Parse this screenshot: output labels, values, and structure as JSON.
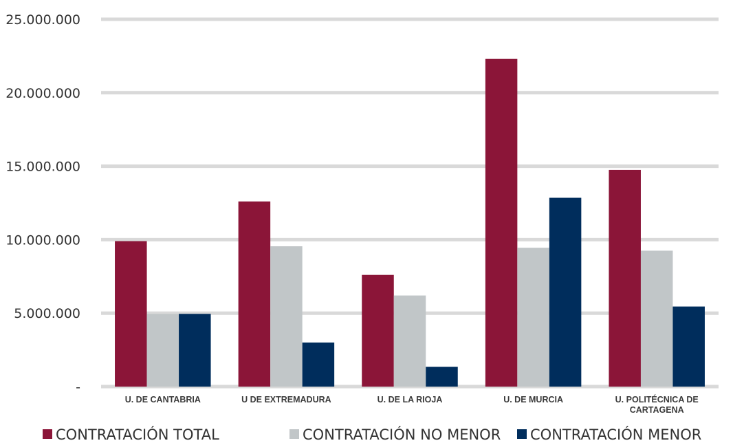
{
  "chart_data": {
    "type": "bar",
    "categories": [
      [
        "U. DE CANTABRIA"
      ],
      [
        "U DE EXTREMADURA"
      ],
      [
        "U. DE LA RIOJA"
      ],
      [
        "U. DE MURCIA"
      ],
      [
        "U. POLITÉCNICA DE",
        "CARTAGENA"
      ]
    ],
    "series": [
      {
        "name": "CONTRATACIÓN TOTAL",
        "color": "#8b1538",
        "values": [
          9900000,
          12600000,
          7600000,
          22300000,
          14750000
        ]
      },
      {
        "name": "CONTRATACIÓN NO MENOR",
        "color": "#c1c6c8",
        "values": [
          4950000,
          9550000,
          6200000,
          9450000,
          9250000
        ]
      },
      {
        "name": "CONTRATACIÓN MENOR",
        "color": "#002d5c",
        "values": [
          4950000,
          3000000,
          1350000,
          12850000,
          5450000
        ]
      }
    ],
    "yticks": [
      {
        "value": 0,
        "label": "-"
      },
      {
        "value": 5000000,
        "label": "5.000.000"
      },
      {
        "value": 10000000,
        "label": "10.000.000"
      },
      {
        "value": 15000000,
        "label": "15.000.000"
      },
      {
        "value": 20000000,
        "label": "20.000.000"
      },
      {
        "value": 25000000,
        "label": "25.000.000"
      }
    ],
    "ylim": [
      0,
      25000000
    ],
    "grid": true,
    "gridColor": "#d9d9d9",
    "legend_position": "bottom"
  }
}
